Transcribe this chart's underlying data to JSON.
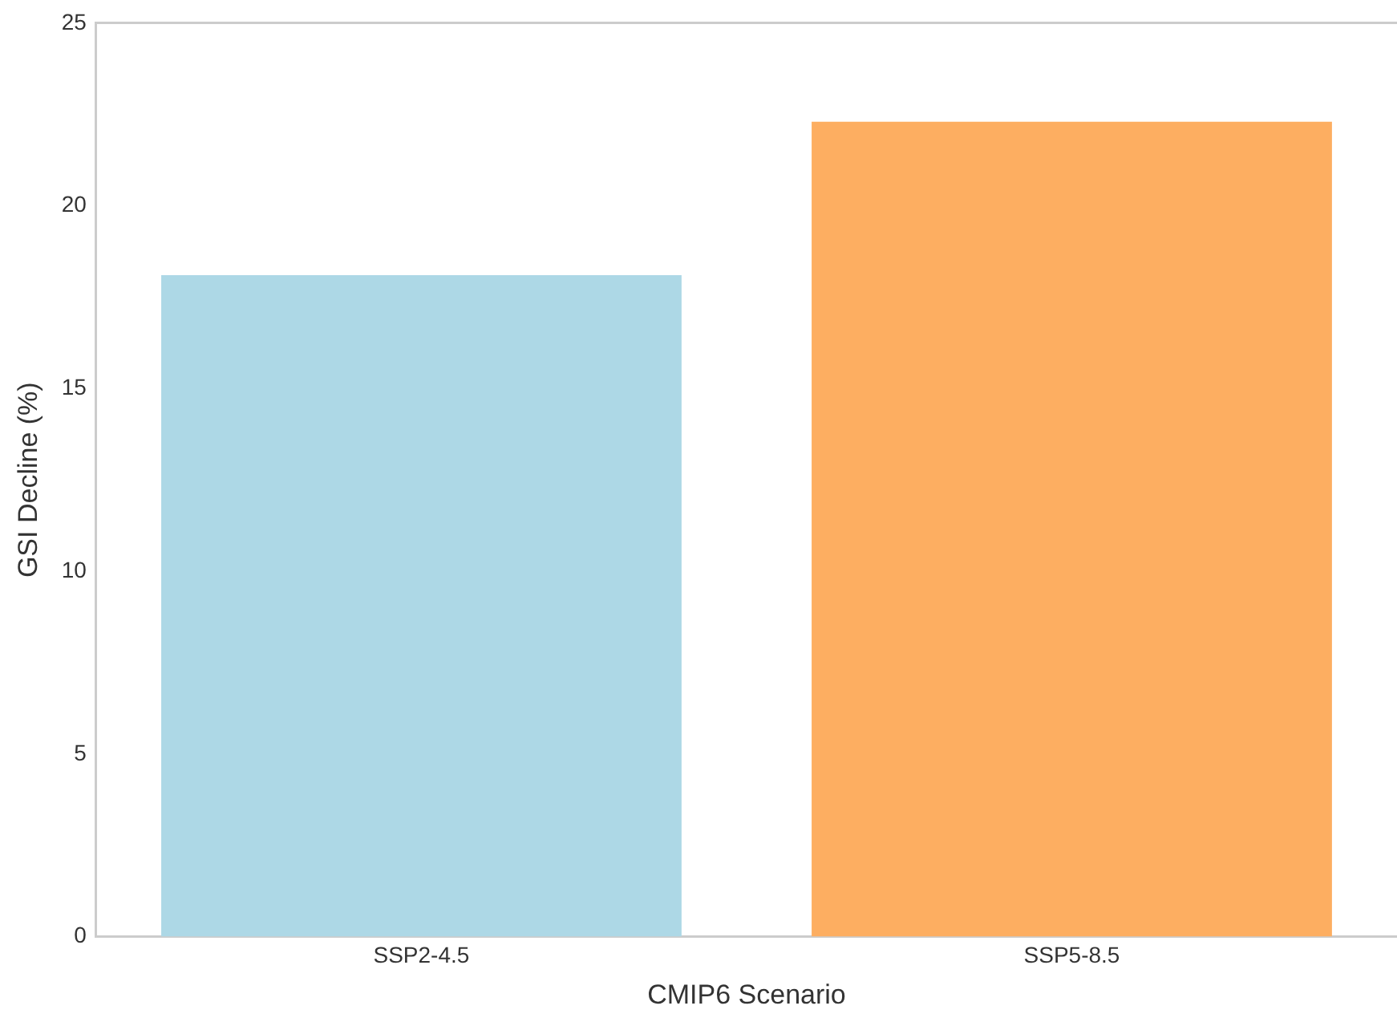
{
  "chart_data": {
    "type": "bar",
    "xlabel": "CMIP6 Scenario",
    "ylabel": "GSI Decline (%)",
    "categories": [
      "SSP2-4.5",
      "SSP5-8.5"
    ],
    "values": [
      18.1,
      22.3
    ],
    "colors": [
      "#add8e6",
      "#fdae61"
    ],
    "ylim": [
      0,
      25
    ],
    "yticks": [
      0,
      5,
      10,
      15,
      20,
      25
    ],
    "grid": false,
    "legend": false
  }
}
